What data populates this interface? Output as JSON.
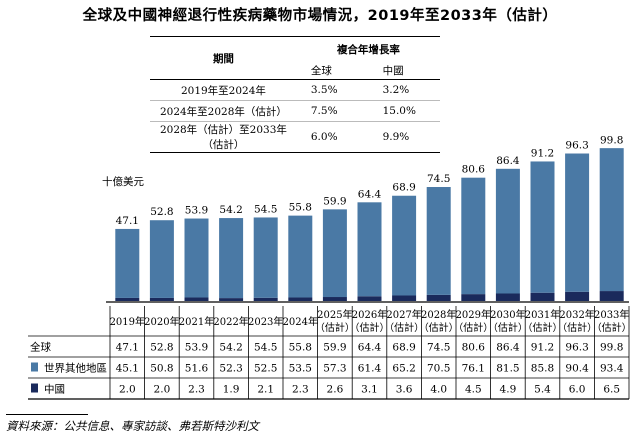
{
  "title": "全球及中國神經退行性疾病藥物市場情況，2019年至2033年（估計）",
  "cagr_table": {
    "header_period": "期間",
    "header_cagr": "複合年增長率",
    "col_global": "全球",
    "col_china": "中國",
    "rows": [
      {
        "period": "2019年至2024年",
        "global": "3.5%",
        "china": "3.2%"
      },
      {
        "period": "2024年至2028年（估計）",
        "global": "7.5%",
        "china": "15.0%"
      },
      {
        "period": "2028年（估計）至2033年（估計）",
        "global": "6.0%",
        "china": "9.9%"
      }
    ]
  },
  "unit_label": "十億美元",
  "legend": {
    "global": "全球",
    "rest_of_world": "世界其他地區",
    "china": "中國"
  },
  "colors": {
    "rest_of_world": "#4a79a5",
    "china": "#1a2a5c"
  },
  "source": "資料來源：公共信息、專家訪談、弗若斯特沙利文",
  "chart_data": {
    "type": "bar",
    "stacked": true,
    "categories": [
      "2019年",
      "2020年",
      "2021年",
      "2022年",
      "2023年",
      "2024年",
      "2025年（估計）",
      "2026年（估計）",
      "2027年（估計）",
      "2028年（估計）",
      "2029年（估計）",
      "2030年（估計）",
      "2031年（估計）",
      "2032年（估計）",
      "2033年（估計）"
    ],
    "category_lines": [
      [
        "2019年"
      ],
      [
        "2020年"
      ],
      [
        "2021年"
      ],
      [
        "2022年"
      ],
      [
        "2023年"
      ],
      [
        "2024年"
      ],
      [
        "2025年",
        "（估計）"
      ],
      [
        "2026年",
        "（估計）"
      ],
      [
        "2027年",
        "（估計）"
      ],
      [
        "2028年",
        "（估計）"
      ],
      [
        "2029年",
        "（估計）"
      ],
      [
        "2030年",
        "（估計）"
      ],
      [
        "2031年",
        "（估計）"
      ],
      [
        "2032年",
        "（估計）"
      ],
      [
        "2033年",
        "（估計）"
      ]
    ],
    "totals": [
      47.1,
      52.8,
      53.9,
      54.2,
      54.5,
      55.8,
      59.9,
      64.4,
      68.9,
      74.5,
      80.6,
      86.4,
      91.2,
      96.3,
      99.8
    ],
    "total_labels": [
      "47.1",
      "52.8",
      "53.9",
      "54.2",
      "54.5",
      "55.8",
      "59.9",
      "64.4",
      "68.9",
      "74.5",
      "80.6",
      "86.4",
      "91.2",
      "96.3",
      "99.8"
    ],
    "series": [
      {
        "name": "世界其他地區",
        "values": [
          45.1,
          50.8,
          51.6,
          52.3,
          52.5,
          53.5,
          57.3,
          61.4,
          65.2,
          70.5,
          76.1,
          81.5,
          85.8,
          90.4,
          93.4
        ],
        "labels": [
          "45.1",
          "50.8",
          "51.6",
          "52.3",
          "52.5",
          "53.5",
          "57.3",
          "61.4",
          "65.2",
          "70.5",
          "76.1",
          "81.5",
          "85.8",
          "90.4",
          "93.4"
        ]
      },
      {
        "name": "中國",
        "values": [
          2.0,
          2.0,
          2.3,
          1.9,
          2.1,
          2.3,
          2.6,
          3.1,
          3.6,
          4.0,
          4.5,
          4.9,
          5.4,
          6.0,
          6.5
        ],
        "labels": [
          "2.0",
          "2.0",
          "2.3",
          "1.9",
          "2.1",
          "2.3",
          "2.6",
          "3.1",
          "3.6",
          "4.0",
          "4.5",
          "4.9",
          "5.4",
          "6.0",
          "6.5"
        ]
      }
    ],
    "ylim": [
      0,
      100
    ],
    "grid": false
  }
}
